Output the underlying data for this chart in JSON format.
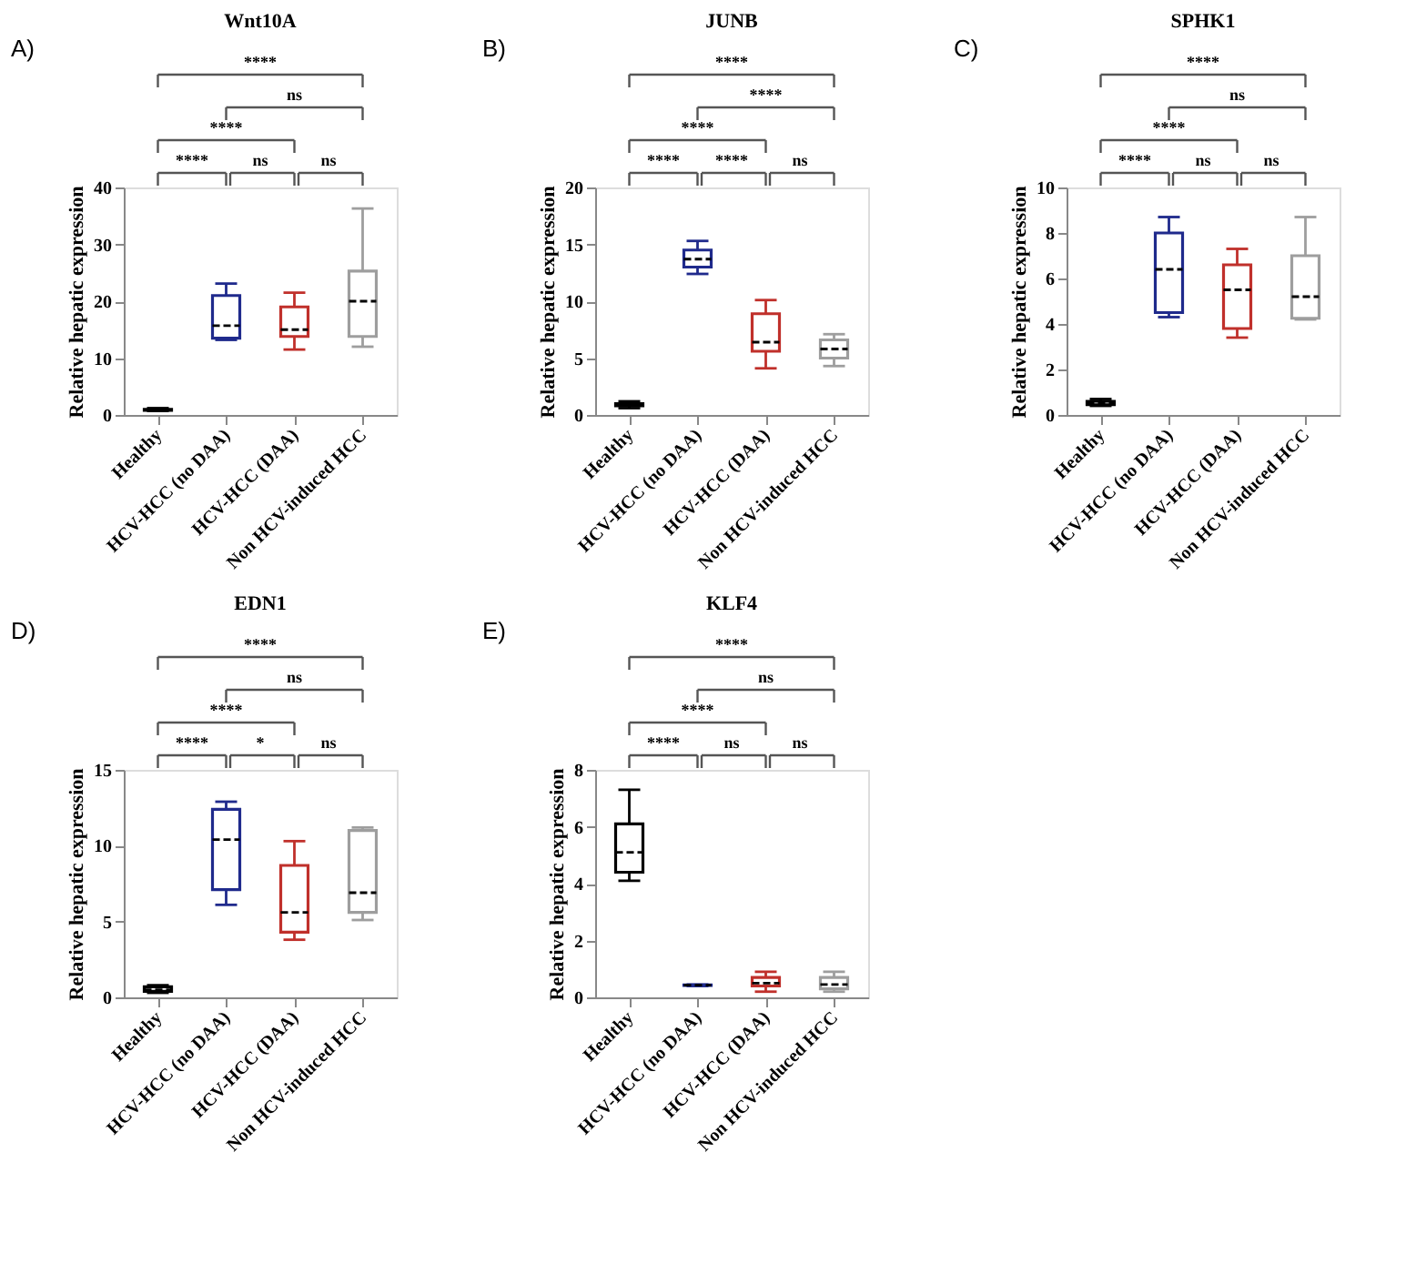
{
  "chart_data": [
    {
      "type": "box",
      "title": "Wnt10A",
      "ylabel": "Relative hepatic expression",
      "categories": [
        "Healthy",
        "HCV-HCC (no DAA)",
        "HCV-HCC (DAA)",
        "Non HCV-induced HCC"
      ],
      "colors": [
        "#000000",
        "#1f2a8c",
        "#c0302b",
        "#9e9e9e"
      ],
      "ylim": [
        0,
        40
      ],
      "yticks": [
        0,
        10,
        20,
        30,
        40
      ],
      "boxes": [
        {
          "low": 0.7,
          "q1": 0.8,
          "median": 0.9,
          "q3": 1.0,
          "high": 1.2
        },
        {
          "low": 13.2,
          "q1": 13.5,
          "median": 15.7,
          "q3": 21,
          "high": 23.1
        },
        {
          "low": 11.5,
          "q1": 13.8,
          "median": 15,
          "q3": 19,
          "high": 21.5
        },
        {
          "low": 12,
          "q1": 13.8,
          "median": 20,
          "q3": 25.3,
          "high": 36.3
        }
      ],
      "annotations": [
        "A)",
        "****",
        "ns",
        "****",
        "****",
        "ns",
        "ns"
      ]
    },
    {
      "type": "box",
      "title": "JUNB",
      "ylabel": "Relative hepatic expression",
      "categories": [
        "Healthy",
        "HCV-HCC (no DAA)",
        "HCV-HCC (DAA)",
        "Non HCV-induced HCC"
      ],
      "colors": [
        "#000000",
        "#1f2a8c",
        "#c0302b",
        "#9e9e9e"
      ],
      "ylim": [
        0,
        20
      ],
      "yticks": [
        0,
        5,
        10,
        15,
        20
      ],
      "boxes": [
        {
          "low": 0.6,
          "q1": 0.8,
          "median": 0.9,
          "q3": 1.0,
          "high": 1.2
        },
        {
          "low": 12.4,
          "q1": 13.0,
          "median": 13.7,
          "q3": 14.5,
          "high": 15.3
        },
        {
          "low": 4.1,
          "q1": 5.6,
          "median": 6.4,
          "q3": 8.9,
          "high": 10.1
        },
        {
          "low": 4.3,
          "q1": 5.0,
          "median": 5.8,
          "q3": 6.6,
          "high": 7.1
        }
      ],
      "annotations": [
        "B)",
        "****",
        "****",
        "****",
        "****",
        "****",
        "ns"
      ]
    },
    {
      "type": "box",
      "title": "SPHK1",
      "ylabel": "Relative hepatic expression",
      "categories": [
        "Healthy",
        "HCV-HCC (no DAA)",
        "HCV-HCC (DAA)",
        "Non HCV-induced HCC"
      ],
      "colors": [
        "#000000",
        "#1f2a8c",
        "#c0302b",
        "#9e9e9e"
      ],
      "ylim": [
        0,
        10
      ],
      "yticks": [
        0,
        2,
        4,
        6,
        8,
        10
      ],
      "boxes": [
        {
          "low": 0.4,
          "q1": 0.45,
          "median": 0.5,
          "q3": 0.6,
          "high": 0.7
        },
        {
          "low": 4.3,
          "q1": 4.5,
          "median": 6.4,
          "q3": 8.0,
          "high": 8.7
        },
        {
          "low": 3.4,
          "q1": 3.8,
          "median": 5.5,
          "q3": 6.6,
          "high": 7.3
        },
        {
          "low": 4.2,
          "q1": 4.25,
          "median": 5.2,
          "q3": 7.0,
          "high": 8.7
        }
      ],
      "annotations": [
        "C)",
        "****",
        "ns",
        "****",
        "****",
        "ns",
        "ns"
      ]
    },
    {
      "type": "box",
      "title": "EDN1",
      "ylabel": "Relative hepatic expression",
      "categories": [
        "Healthy",
        "HCV-HCC (no DAA)",
        "HCV-HCC (DAA)",
        "Non HCV-induced HCC"
      ],
      "colors": [
        "#000000",
        "#1f2a8c",
        "#c0302b",
        "#9e9e9e"
      ],
      "ylim": [
        0,
        15
      ],
      "yticks": [
        0,
        5,
        10,
        15
      ],
      "boxes": [
        {
          "low": 0.3,
          "q1": 0.4,
          "median": 0.5,
          "q3": 0.7,
          "high": 0.8
        },
        {
          "low": 6.1,
          "q1": 7.1,
          "median": 10.4,
          "q3": 12.4,
          "high": 12.9
        },
        {
          "low": 3.8,
          "q1": 4.3,
          "median": 5.6,
          "q3": 8.7,
          "high": 10.3
        },
        {
          "low": 5.1,
          "q1": 5.6,
          "median": 6.9,
          "q3": 11.0,
          "high": 11.2
        }
      ],
      "annotations": [
        "D)",
        "****",
        "ns",
        "****",
        "****",
        "*",
        "ns"
      ]
    },
    {
      "type": "box",
      "title": "KLF4",
      "ylabel": "Relative hepatic expression",
      "categories": [
        "Healthy",
        "HCV-HCC (no DAA)",
        "HCV-HCC (DAA)",
        "Non HCV-induced HCC"
      ],
      "colors": [
        "#000000",
        "#1f2a8c",
        "#c0302b",
        "#9e9e9e"
      ],
      "ylim": [
        0,
        8
      ],
      "yticks": [
        0,
        2,
        4,
        6,
        8
      ],
      "boxes": [
        {
          "low": 4.1,
          "q1": 4.4,
          "median": 5.1,
          "q3": 6.1,
          "high": 7.3
        },
        {
          "low": 0.4,
          "q1": 0.42,
          "median": 0.43,
          "q3": 0.44,
          "high": 0.45
        },
        {
          "low": 0.2,
          "q1": 0.4,
          "median": 0.5,
          "q3": 0.7,
          "high": 0.9
        },
        {
          "low": 0.2,
          "q1": 0.3,
          "median": 0.45,
          "q3": 0.7,
          "high": 0.9
        }
      ],
      "annotations": [
        "E)",
        "****",
        "ns",
        "****",
        "****",
        "ns",
        "ns"
      ]
    }
  ]
}
